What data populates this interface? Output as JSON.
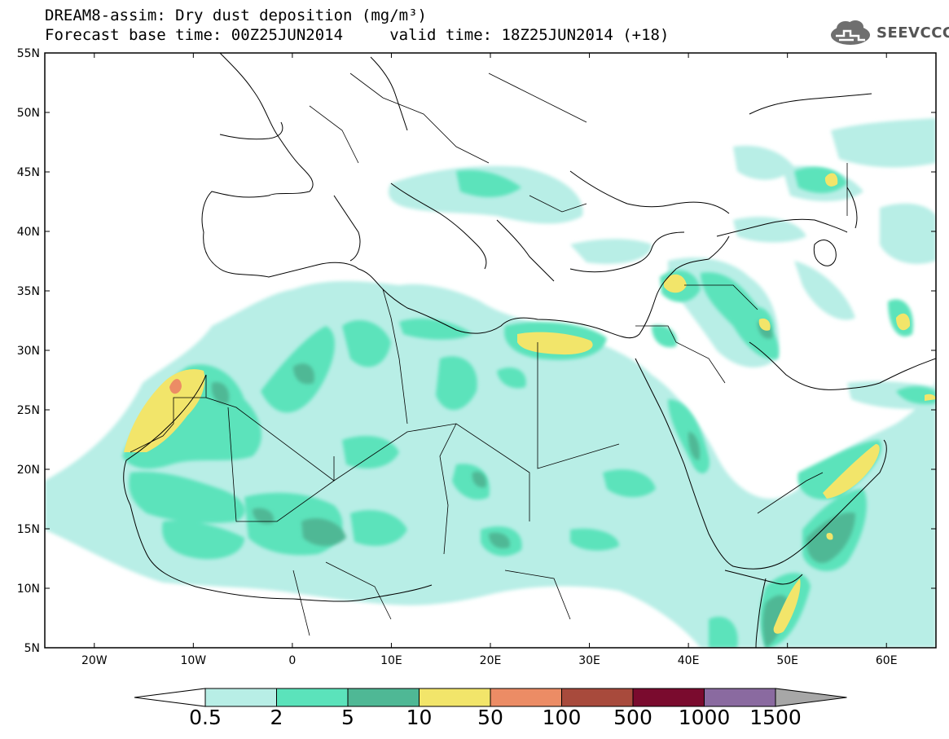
{
  "title": {
    "line1": "DREAM8-assim: Dry dust deposition (mg/m³)",
    "line2": "Forecast base time: 00Z25JUN2014     valid time: 18Z25JUN2014 (+18)"
  },
  "logo": {
    "icon": "cloud-logo-icon",
    "text": "SEEVCCC"
  },
  "map": {
    "lon_range": [
      -25,
      65
    ],
    "lat_range": [
      5,
      55
    ],
    "y_ticks": [
      "5N",
      "10N",
      "15N",
      "20N",
      "25N",
      "30N",
      "35N",
      "40N",
      "45N",
      "50N",
      "55N"
    ],
    "x_ticks": [
      "20W",
      "10W",
      "0",
      "10E",
      "20E",
      "30E",
      "40E",
      "50E",
      "60E"
    ]
  },
  "colorbar": {
    "labels": [
      "0.5",
      "2",
      "5",
      "10",
      "50",
      "100",
      "500",
      "1000",
      "1500"
    ],
    "colors": [
      "#b8eee6",
      "#5be3bb",
      "#4fb895",
      "#f2e56a",
      "#ec8c65",
      "#a84a3c",
      "#7a0b2e",
      "#8a6aa0",
      "#a7a7a7"
    ],
    "extend_low_color": "#ffffff"
  }
}
